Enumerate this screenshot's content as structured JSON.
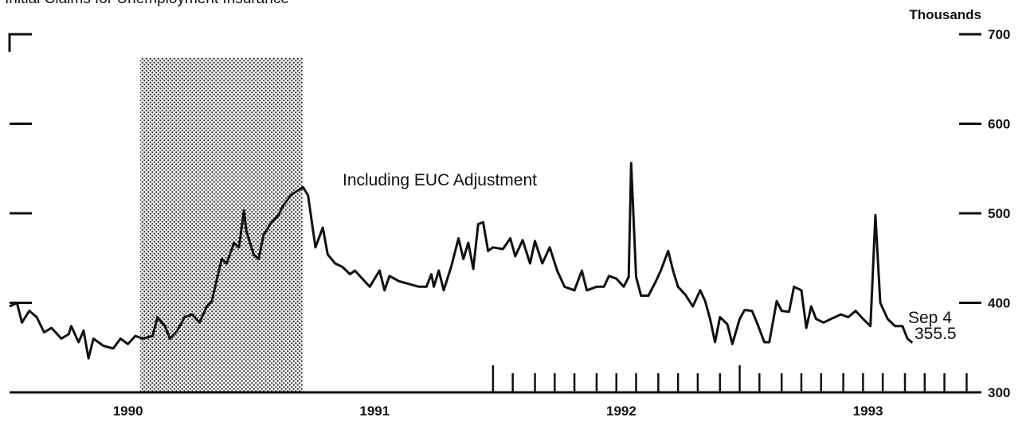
{
  "chart_data": {
    "type": "line",
    "title": "Initial Claims for Unemployment Insurance",
    "y_axis_label": "Thousands",
    "annotations": [
      "Including EUC Adjustment",
      "Sep 4",
      "355.5"
    ],
    "xlim": [
      1990.02,
      1993.96
    ],
    "xticks": [
      {
        "value": 1990.5,
        "label": "1990"
      },
      {
        "value": 1991.5,
        "label": "1991"
      },
      {
        "value": 1992.5,
        "label": "1992"
      },
      {
        "value": 1993.5,
        "label": "1993"
      }
    ],
    "month_ticks": [
      1991.98,
      1992.06,
      1992.15,
      1992.23,
      1992.31,
      1992.4,
      1992.48,
      1992.56,
      1992.65,
      1992.73,
      1992.81,
      1992.9,
      1992.98,
      1993.06,
      1993.15,
      1993.23,
      1993.31,
      1993.4,
      1993.48,
      1993.56,
      1993.65,
      1993.73,
      1993.81,
      1993.9
    ],
    "ylim": [
      300,
      700
    ],
    "yticks": [
      300,
      400,
      500,
      600,
      700
    ],
    "shade": {
      "x": [
        1990.55,
        1991.21
      ],
      "top": 674
    },
    "color": "#111111",
    "x": [
      1990.02,
      1990.05,
      1990.07,
      1990.1,
      1990.13,
      1990.16,
      1990.19,
      1990.23,
      1990.26,
      1990.27,
      1990.3,
      1990.32,
      1990.34,
      1990.36,
      1990.4,
      1990.44,
      1990.47,
      1990.5,
      1990.53,
      1990.56,
      1990.6,
      1990.62,
      1990.65,
      1990.67,
      1990.7,
      1990.73,
      1990.76,
      1990.79,
      1990.82,
      1990.84,
      1990.85,
      1990.88,
      1990.9,
      1990.93,
      1990.95,
      1990.97,
      1990.98,
      1991.01,
      1991.03,
      1991.05,
      1991.08,
      1991.11,
      1991.13,
      1991.16,
      1991.18,
      1991.21,
      1991.23,
      1991.26,
      1991.29,
      1991.31,
      1991.34,
      1991.37,
      1991.4,
      1991.42,
      1991.45,
      1991.48,
      1991.52,
      1991.54,
      1991.56,
      1991.6,
      1991.64,
      1991.68,
      1991.71,
      1991.73,
      1991.74,
      1991.76,
      1991.78,
      1991.81,
      1991.84,
      1991.86,
      1991.88,
      1991.9,
      1991.92,
      1991.94,
      1991.96,
      1991.98,
      1992.02,
      1992.05,
      1992.07,
      1992.1,
      1992.13,
      1992.15,
      1992.18,
      1992.21,
      1992.24,
      1992.27,
      1992.31,
      1992.34,
      1992.36,
      1992.4,
      1992.43,
      1992.45,
      1992.48,
      1992.51,
      1992.53,
      1992.54,
      1992.56,
      1992.58,
      1992.61,
      1992.64,
      1992.66,
      1992.69,
      1992.71,
      1992.73,
      1992.76,
      1992.79,
      1992.82,
      1992.84,
      1992.86,
      1992.88,
      1992.9,
      1992.93,
      1992.95,
      1992.98,
      1993.0,
      1993.03,
      1993.05,
      1993.08,
      1993.1,
      1993.13,
      1993.15,
      1993.18,
      1993.2,
      1993.23,
      1993.25,
      1993.27,
      1993.29,
      1993.32,
      1993.35,
      1993.39,
      1993.42,
      1993.45,
      1993.48,
      1993.51,
      1993.53,
      1993.55,
      1993.58,
      1993.61,
      1993.64,
      1993.66,
      1993.68
    ],
    "values": [
      396,
      400,
      378,
      391,
      384,
      367,
      372,
      360,
      365,
      374,
      356,
      369,
      338,
      360,
      352,
      349,
      360,
      354,
      363,
      360,
      363,
      384,
      374,
      360,
      369,
      384,
      387,
      378,
      396,
      402,
      414,
      449,
      444,
      467,
      462,
      503,
      480,
      454,
      449,
      476,
      489,
      498,
      509,
      520,
      524,
      529,
      520,
      462,
      484,
      454,
      444,
      440,
      432,
      436,
      427,
      418,
      436,
      414,
      430,
      424,
      421,
      418,
      418,
      432,
      418,
      436,
      414,
      440,
      472,
      449,
      467,
      438,
      488,
      490,
      458,
      462,
      460,
      472,
      452,
      470,
      444,
      469,
      444,
      462,
      436,
      418,
      414,
      436,
      414,
      418,
      418,
      430,
      427,
      418,
      429,
      556,
      429,
      408,
      408,
      424,
      436,
      458,
      436,
      418,
      409,
      396,
      414,
      402,
      382,
      356,
      384,
      376,
      354,
      382,
      392,
      391,
      378,
      356,
      356,
      402,
      391,
      390,
      418,
      414,
      372,
      396,
      382,
      378,
      382,
      387,
      384,
      391,
      382,
      374,
      498,
      400,
      382,
      374,
      374,
      360,
      355.5
    ]
  }
}
